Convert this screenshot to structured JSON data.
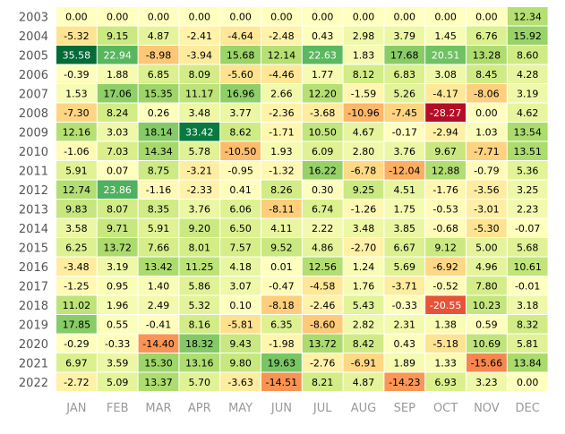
{
  "chart_data": {
    "type": "heatmap",
    "title": "",
    "xlabel": "",
    "ylabel": "",
    "months": [
      "JAN",
      "FEB",
      "MAR",
      "APR",
      "MAY",
      "JUN",
      "JUL",
      "AUG",
      "SEP",
      "OCT",
      "NOV",
      "DEC"
    ],
    "years": [
      "2003",
      "2004",
      "2005",
      "2006",
      "2007",
      "2008",
      "2009",
      "2010",
      "2011",
      "2012",
      "2013",
      "2014",
      "2015",
      "2016",
      "2017",
      "2018",
      "2019",
      "2020",
      "2021",
      "2022"
    ],
    "color_scale": {
      "min": -30,
      "max": 36,
      "low": "#d73027",
      "mid": "#ffffbf",
      "high": "#1a9850"
    },
    "values": [
      [
        "0.00",
        "0.00",
        "0.00",
        "0.00",
        "0.00",
        "0.00",
        "0.00",
        "0.00",
        "0.00",
        "0.00",
        "0.00",
        "12.34"
      ],
      [
        "-5.32",
        "9.15",
        "4.87",
        "-2.41",
        "-4.64",
        "-2.48",
        "0.43",
        "2.98",
        "3.79",
        "1.45",
        "6.76",
        "15.92"
      ],
      [
        "35.58",
        "22.94",
        "-8.98",
        "-3.94",
        "15.68",
        "12.14",
        "22.63",
        "1.83",
        "17.68",
        "20.51",
        "13.28",
        "8.60"
      ],
      [
        "-0.39",
        "1.88",
        "6.85",
        "8.09",
        "-5.60",
        "-4.46",
        "1.77",
        "8.12",
        "6.83",
        "3.08",
        "8.45",
        "4.28"
      ],
      [
        "1.53",
        "17.06",
        "15.35",
        "11.17",
        "16.96",
        "2.66",
        "12.20",
        "-1.59",
        "5.26",
        "-4.17",
        "-8.06",
        "3.19"
      ],
      [
        "-7.30",
        "8.24",
        "0.26",
        "3.48",
        "3.77",
        "-2.36",
        "-3.68",
        "-10.96",
        "-7.45",
        "-28.27",
        "0.00",
        "4.62"
      ],
      [
        "12.16",
        "3.03",
        "18.14",
        "33.42",
        "8.62",
        "-1.71",
        "10.50",
        "4.67",
        "-0.17",
        "-2.94",
        "1.03",
        "13.54"
      ],
      [
        "-1.06",
        "7.03",
        "14.34",
        "5.78",
        "-10.50",
        "1.93",
        "6.09",
        "2.80",
        "3.76",
        "9.67",
        "-7.71",
        "13.51"
      ],
      [
        "5.91",
        "0.07",
        "8.75",
        "-3.21",
        "-0.95",
        "-1.32",
        "16.22",
        "-6.78",
        "-12.04",
        "12.88",
        "-0.79",
        "5.36"
      ],
      [
        "12.74",
        "23.86",
        "-1.16",
        "-2.33",
        "0.41",
        "8.26",
        "0.30",
        "9.25",
        "4.51",
        "-1.76",
        "-3.56",
        "3.25"
      ],
      [
        "9.83",
        "8.07",
        "8.35",
        "3.76",
        "6.06",
        "-8.11",
        "6.74",
        "-1.26",
        "1.75",
        "-0.53",
        "-3.01",
        "2.23"
      ],
      [
        "3.58",
        "9.71",
        "5.91",
        "9.20",
        "6.50",
        "4.11",
        "2.22",
        "3.48",
        "3.85",
        "-0.68",
        "-5.30",
        "-0.07"
      ],
      [
        "6.25",
        "13.72",
        "7.66",
        "8.01",
        "7.57",
        "9.52",
        "4.86",
        "-2.70",
        "6.67",
        "9.12",
        "5.00",
        "5.68"
      ],
      [
        "-3.48",
        "3.19",
        "13.42",
        "11.25",
        "4.18",
        "0.01",
        "12.56",
        "1.24",
        "5.69",
        "-6.92",
        "4.96",
        "10.61"
      ],
      [
        "-1.25",
        "0.95",
        "1.40",
        "5.86",
        "3.07",
        "-0.47",
        "-4.58",
        "1.76",
        "-3.71",
        "-0.52",
        "7.80",
        "-0.01"
      ],
      [
        "11.02",
        "1.96",
        "2.49",
        "5.32",
        "0.10",
        "-8.18",
        "-2.46",
        "5.43",
        "-0.33",
        "-20.55",
        "10.23",
        "3.18"
      ],
      [
        "17.85",
        "0.55",
        "-0.41",
        "8.16",
        "-5.81",
        "6.35",
        "-8.60",
        "2.82",
        "2.31",
        "1.38",
        "0.59",
        "8.32"
      ],
      [
        "-0.29",
        "-0.33",
        "-14.40",
        "18.32",
        "9.43",
        "-1.98",
        "13.72",
        "8.42",
        "0.43",
        "-5.18",
        "10.69",
        "5.81"
      ],
      [
        "6.97",
        "3.59",
        "15.30",
        "13.16",
        "9.80",
        "19.63",
        "-2.76",
        "-6.91",
        "1.89",
        "1.33",
        "-15.66",
        "13.84"
      ],
      [
        "-2.72",
        "5.09",
        "13.37",
        "5.70",
        "-3.63",
        "-14.51",
        "8.21",
        "4.87",
        "-14.23",
        "6.93",
        "3.23",
        "0.00"
      ]
    ]
  }
}
